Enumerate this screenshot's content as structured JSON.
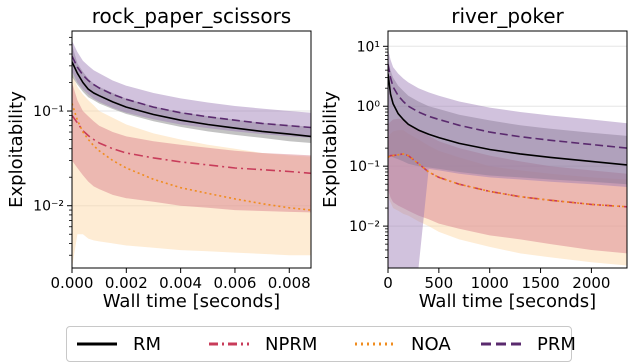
{
  "chart_data": [
    {
      "type": "line",
      "title": "rock_paper_scissors",
      "xlabel": "Wall time [seconds]",
      "ylabel": "Exploitability",
      "xlim": [
        0,
        0.0088
      ],
      "ylim": [
        0.0022,
        0.7
      ],
      "yscale": "log",
      "x_ticks": [
        0.0,
        0.002,
        0.004,
        0.006,
        0.008
      ],
      "x_tick_labels": [
        "0.000",
        "0.002",
        "0.004",
        "0.006",
        "0.008"
      ],
      "y_ticks": [
        0.01,
        0.1
      ],
      "y_tick_labels": [
        "10⁻²",
        "10⁻¹"
      ],
      "grid": true,
      "x": [
        0.0,
        0.0002,
        0.0004,
        0.0006,
        0.0008,
        0.001,
        0.0015,
        0.002,
        0.003,
        0.004,
        0.005,
        0.006,
        0.007,
        0.008,
        0.0088
      ],
      "series": [
        {
          "name": "RM",
          "color": "#000000",
          "style": "solid",
          "values": [
            0.33,
            0.25,
            0.2,
            0.17,
            0.155,
            0.145,
            0.125,
            0.11,
            0.092,
            0.08,
            0.072,
            0.066,
            0.061,
            0.057,
            0.054
          ],
          "lower": [
            0.23,
            0.19,
            0.16,
            0.14,
            0.13,
            0.12,
            0.105,
            0.093,
            0.078,
            0.068,
            0.061,
            0.056,
            0.052,
            0.048,
            0.046
          ],
          "upper": [
            0.5,
            0.32,
            0.26,
            0.22,
            0.195,
            0.18,
            0.155,
            0.135,
            0.112,
            0.097,
            0.088,
            0.081,
            0.075,
            0.071,
            0.068
          ]
        },
        {
          "name": "NPRM",
          "color": "#c83c5a",
          "style": "dashdot",
          "values": [
            0.09,
            0.075,
            0.062,
            0.055,
            0.05,
            0.046,
            0.04,
            0.036,
            0.032,
            0.029,
            0.027,
            0.025,
            0.024,
            0.023,
            0.022
          ],
          "lower": [
            0.03,
            0.025,
            0.021,
            0.018,
            0.016,
            0.015,
            0.013,
            0.012,
            0.011,
            0.01,
            0.0095,
            0.009,
            0.0088,
            0.0086,
            0.0085
          ],
          "upper": [
            0.2,
            0.13,
            0.1,
            0.088,
            0.078,
            0.07,
            0.06,
            0.054,
            0.048,
            0.044,
            0.041,
            0.038,
            0.036,
            0.035,
            0.034
          ]
        },
        {
          "name": "NOA",
          "color": "#f08c1e",
          "style": "dotted",
          "values": [
            0.12,
            0.08,
            0.06,
            0.05,
            0.043,
            0.038,
            0.03,
            0.025,
            0.019,
            0.0155,
            0.0135,
            0.0118,
            0.0105,
            0.0095,
            0.009
          ],
          "lower": [
            0.0022,
            0.005,
            0.005,
            0.0045,
            0.0043,
            0.0042,
            0.004,
            0.0038,
            0.0036,
            0.0034,
            0.0033,
            0.0032,
            0.0031,
            0.003,
            0.003
          ],
          "upper": [
            0.25,
            0.18,
            0.15,
            0.13,
            0.115,
            0.1,
            0.085,
            0.072,
            0.058,
            0.05,
            0.044,
            0.04,
            0.036,
            0.034,
            0.033
          ]
        },
        {
          "name": "PRM",
          "color": "#5a2a6e",
          "style": "dashed",
          "values": [
            0.38,
            0.29,
            0.24,
            0.21,
            0.19,
            0.175,
            0.15,
            0.133,
            0.11,
            0.096,
            0.087,
            0.08,
            0.074,
            0.07,
            0.067
          ],
          "lower": [
            0.26,
            0.2,
            0.17,
            0.15,
            0.135,
            0.125,
            0.108,
            0.096,
            0.082,
            0.072,
            0.066,
            0.061,
            0.057,
            0.054,
            0.052
          ],
          "upper": [
            0.55,
            0.42,
            0.34,
            0.3,
            0.27,
            0.25,
            0.21,
            0.185,
            0.155,
            0.136,
            0.123,
            0.113,
            0.106,
            0.1,
            0.096
          ]
        }
      ]
    },
    {
      "type": "line",
      "title": "river_poker",
      "xlabel": "Wall time [seconds]",
      "ylabel": "Exploitability",
      "xlim": [
        0,
        2350
      ],
      "ylim": [
        0.002,
        18
      ],
      "yscale": "log",
      "x_ticks": [
        0,
        500,
        1000,
        1500,
        2000
      ],
      "x_tick_labels": [
        "0",
        "500",
        "1000",
        "1500",
        "2000"
      ],
      "y_ticks": [
        0.01,
        0.1,
        1,
        10
      ],
      "y_tick_labels": [
        "10⁻²",
        "10⁻¹",
        "10⁰",
        "10¹"
      ],
      "grid": true,
      "x": [
        0,
        25,
        50,
        100,
        150,
        200,
        300,
        400,
        500,
        700,
        1000,
        1300,
        1600,
        2000,
        2350
      ],
      "series": [
        {
          "name": "RM",
          "color": "#000000",
          "style": "solid",
          "values": [
            3.5,
            1.6,
            1.1,
            0.75,
            0.6,
            0.5,
            0.4,
            0.34,
            0.3,
            0.24,
            0.19,
            0.16,
            0.14,
            0.12,
            0.105
          ],
          "lower": [
            0.15,
            0.15,
            0.14,
            0.13,
            0.12,
            0.11,
            0.1,
            0.095,
            0.09,
            0.08,
            0.07,
            0.065,
            0.06,
            0.055,
            0.05
          ],
          "upper": [
            6,
            4,
            3,
            2.2,
            1.8,
            1.5,
            1.2,
            1.0,
            0.9,
            0.72,
            0.58,
            0.48,
            0.42,
            0.36,
            0.32
          ]
        },
        {
          "name": "NPRM",
          "color": "#c83c5a",
          "style": "dashdot",
          "values": [
            0.14,
            0.15,
            0.15,
            0.155,
            0.16,
            0.15,
            0.11,
            0.08,
            0.065,
            0.05,
            0.038,
            0.031,
            0.027,
            0.023,
            0.021
          ],
          "lower": [
            0.04,
            0.03,
            0.025,
            0.022,
            0.02,
            0.018,
            0.015,
            0.013,
            0.011,
            0.009,
            0.007,
            0.006,
            0.005,
            0.004,
            0.0035
          ],
          "upper": [
            0.5,
            0.55,
            0.6,
            0.62,
            0.6,
            0.5,
            0.4,
            0.32,
            0.26,
            0.2,
            0.15,
            0.12,
            0.1,
            0.085,
            0.075
          ]
        },
        {
          "name": "NOA",
          "color": "#f08c1e",
          "style": "dotted",
          "values": [
            0.14,
            0.15,
            0.15,
            0.155,
            0.16,
            0.15,
            0.11,
            0.08,
            0.065,
            0.05,
            0.038,
            0.031,
            0.027,
            0.023,
            0.021
          ],
          "lower": [
            0.03,
            0.025,
            0.02,
            0.018,
            0.016,
            0.015,
            0.012,
            0.01,
            0.008,
            0.006,
            0.0045,
            0.0035,
            0.003,
            0.0025,
            0.0022
          ],
          "upper": [
            0.3,
            0.35,
            0.38,
            0.4,
            0.4,
            0.35,
            0.28,
            0.22,
            0.18,
            0.14,
            0.1,
            0.085,
            0.075,
            0.065,
            0.06
          ]
        },
        {
          "name": "PRM",
          "color": "#5a2a6e",
          "style": "dashed",
          "values": [
            5,
            3,
            2.1,
            1.5,
            1.2,
            1.0,
            0.8,
            0.68,
            0.6,
            0.48,
            0.37,
            0.31,
            0.27,
            0.23,
            0.2
          ],
          "lower": [
            0.002,
            0.002,
            0.002,
            0.002,
            0.002,
            0.002,
            0.002,
            0.09,
            0.085,
            0.075,
            0.065,
            0.06,
            0.055,
            0.05,
            0.045
          ],
          "upper": [
            9,
            6,
            4.5,
            3.5,
            2.9,
            2.5,
            2.0,
            1.7,
            1.5,
            1.2,
            0.95,
            0.8,
            0.7,
            0.6,
            0.52
          ]
        }
      ]
    }
  ],
  "legend": {
    "placement": "bottom-center",
    "items": [
      {
        "label": "RM",
        "color": "#000000",
        "style": "solid"
      },
      {
        "label": "NPRM",
        "color": "#c83c5a",
        "style": "dashdot"
      },
      {
        "label": "NOA",
        "color": "#f08c1e",
        "style": "dotted"
      },
      {
        "label": "PRM",
        "color": "#5a2a6e",
        "style": "dashed"
      }
    ]
  },
  "band_colors": {
    "RM": "#7a7a7a",
    "NPRM": "#d77a88",
    "NOA": "#fdd5a0",
    "PRM": "#9a78b4"
  }
}
